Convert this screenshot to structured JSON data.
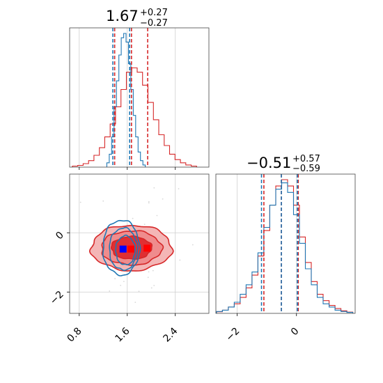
{
  "chart_data": {
    "type": "corner",
    "parameters": [
      {
        "title_value": "1.67",
        "title_plus": "+0.27",
        "title_minus": "−0.27",
        "xlim": [
          0.64,
          2.96
        ],
        "ticks": [
          0.8,
          1.6,
          2.4
        ],
        "tick_labels": [
          "0.8",
          "1.6",
          "2.4"
        ]
      },
      {
        "title_value": "−0.51",
        "title_plus": "+0.57",
        "title_minus": "−0.59",
        "xlim": [
          -2.72,
          1.98
        ],
        "ticks": [
          -2,
          0
        ],
        "tick_labels": [
          "−2",
          "0"
        ]
      }
    ],
    "series": [
      {
        "color": "#d62728",
        "marginal_quantiles": [
          [
            1.39,
            1.67,
            1.94
          ],
          [
            -1.1,
            -0.51,
            0.06
          ]
        ],
        "hist1": {
          "x": [
            0.73,
            0.82,
            0.91,
            1.0,
            1.09,
            1.18,
            1.27,
            1.36,
            1.45,
            1.54,
            1.63,
            1.72,
            1.81,
            1.9,
            1.99,
            2.08,
            2.17,
            2.26,
            2.35,
            2.44,
            2.53,
            2.62,
            2.71
          ],
          "y": [
            0.5,
            0.8,
            1.6,
            3,
            5.5,
            9,
            14,
            20,
            28,
            36,
            44,
            46,
            44,
            38,
            30,
            22,
            15,
            10,
            6,
            3.5,
            2,
            1,
            0.5
          ]
        },
        "hist2": {
          "x": [
            -2.6,
            -2.4,
            -2.2,
            -2.0,
            -1.8,
            -1.6,
            -1.4,
            -1.2,
            -1.0,
            -0.8,
            -0.6,
            -0.4,
            -0.2,
            0.0,
            0.2,
            0.4,
            0.6,
            0.8,
            1.0,
            1.2,
            1.4,
            1.6,
            1.8
          ],
          "y": [
            0.5,
            1,
            2,
            3,
            5,
            8,
            12,
            18,
            26,
            34,
            40,
            42,
            40,
            34,
            24,
            16,
            10,
            6,
            4,
            2.5,
            1.5,
            0.8,
            0.4
          ]
        },
        "contour_sigma": [
          0.28,
          0.55
        ],
        "mean": [
          1.67,
          -0.51
        ],
        "points": [
          [
            1.53,
            -0.55
          ],
          [
            1.66,
            -0.55
          ],
          [
            1.93,
            -0.52
          ]
        ]
      },
      {
        "color": "#1f77b4",
        "marginal_quantiles": [
          [
            1.36,
            1.64
          ],
          [
            -1.18,
            -0.51,
            0.03
          ]
        ],
        "hist1": {
          "x": [
            1.28,
            1.32,
            1.36,
            1.4,
            1.44,
            1.48,
            1.52,
            1.56,
            1.6,
            1.64,
            1.68,
            1.72,
            1.76,
            1.8,
            1.84,
            1.88
          ],
          "y": [
            2,
            6,
            14,
            28,
            40,
            52,
            60,
            62,
            58,
            48,
            36,
            24,
            14,
            7,
            3,
            1
          ]
        },
        "hist2": {
          "x": [
            -2.6,
            -2.4,
            -2.2,
            -2.0,
            -1.8,
            -1.6,
            -1.4,
            -1.2,
            -1.0,
            -0.8,
            -0.6,
            -0.4,
            -0.2,
            0.0,
            0.2,
            0.4,
            0.6,
            0.8,
            1.0,
            1.2,
            1.4,
            1.6,
            1.8
          ],
          "y": [
            0.6,
            1,
            2,
            3.5,
            6,
            9,
            13,
            19,
            27,
            34,
            39,
            41,
            38,
            31,
            22,
            14,
            9,
            5,
            3,
            2,
            1,
            0.6,
            0.3
          ]
        },
        "contour_sigma": [
          0.09,
          0.65
        ],
        "mean": [
          1.5,
          -0.5
        ],
        "points": [
          [
            1.53,
            -0.55
          ]
        ]
      }
    ],
    "grid": true
  }
}
